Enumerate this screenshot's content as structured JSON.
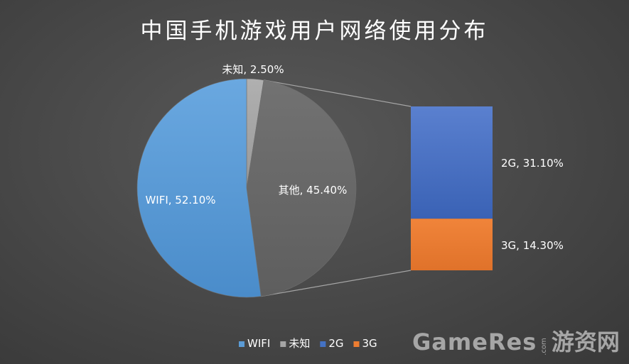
{
  "title": "中国手机游戏用户网络使用分布",
  "watermark": {
    "main": "GameRes",
    "dot_com": ".com",
    "cn": "游资网"
  },
  "chart_data": {
    "type": "bar-of-pie",
    "title": "中国手机游戏用户网络使用分布",
    "pie": [
      {
        "name": "WIFI",
        "value": 52.1,
        "label": "WIFI, 52.10%",
        "color": "#5b9bd5"
      },
      {
        "name": "未知",
        "value": 2.5,
        "label": "未知, 2.50%",
        "color": "#a5a5a5"
      },
      {
        "name": "其他",
        "value": 45.4,
        "label": "其他, 45.40%",
        "color": "#6b6b6b"
      }
    ],
    "bar": [
      {
        "name": "2G",
        "value": 31.1,
        "label": "2G, 31.10%",
        "color": "#4472c4"
      },
      {
        "name": "3G",
        "value": 14.3,
        "label": "3G, 14.30%",
        "color": "#ed7d31"
      }
    ],
    "legend": {
      "position": "bottom",
      "items": [
        {
          "name": "WIFI",
          "color": "#5b9bd5"
        },
        {
          "name": "未知",
          "color": "#a5a5a5"
        },
        {
          "name": "2G",
          "color": "#4472c4"
        },
        {
          "name": "3G",
          "color": "#ed7d31"
        }
      ]
    }
  }
}
